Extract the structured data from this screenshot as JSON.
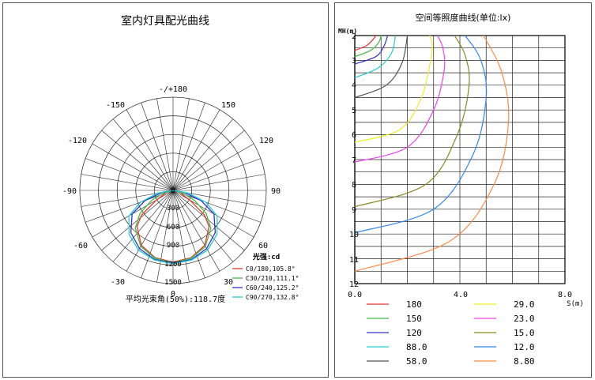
{
  "polar": {
    "title": "室内灯具配光曲线",
    "angle_labels": [
      "-/+180",
      "-150",
      "150",
      "-120",
      "120",
      "-90",
      "90",
      "-60",
      "60",
      "-30",
      "30",
      "0"
    ],
    "radial_labels": [
      "0",
      "300",
      "600",
      "900",
      "1200",
      "1500"
    ],
    "legend_title": "光强:cd",
    "beam_angle_label": "平均光束角(50%):118.7度"
  },
  "iso": {
    "title": "空间等照度曲线(单位:lx)",
    "y_axis_label": "MH(m)",
    "x_axis_label": "S(m)",
    "y_ticks": [
      "2",
      "3",
      "4",
      "5",
      "6",
      "7",
      "8",
      "9",
      "10",
      "11",
      "12"
    ],
    "x_ticks": [
      "0.0",
      "4.0",
      "8.0"
    ]
  },
  "chart_data": [
    {
      "type": "polar",
      "title": "室内灯具配光曲线",
      "unit": "cd",
      "rlim": [
        0,
        1500
      ],
      "radial_ticks": [
        0,
        300,
        600,
        900,
        1200,
        1500
      ],
      "grid": true,
      "legend_position": "bottom-right",
      "series": [
        {
          "name": "C0/180,105.8°",
          "color": "#e8352f",
          "angles": [
            0,
            15,
            30,
            45,
            52,
            60,
            75,
            90
          ],
          "values": [
            1155,
            1120,
            1020,
            820,
            640,
            310,
            100,
            0
          ]
        },
        {
          "name": "C30/210,111.1°",
          "color": "#44bb44",
          "angles": [
            0,
            15,
            30,
            45,
            55,
            65,
            75,
            90
          ],
          "values": [
            1165,
            1130,
            1040,
            860,
            650,
            380,
            150,
            0
          ]
        },
        {
          "name": "C60/240,125.2°",
          "color": "#3333cc",
          "angles": [
            0,
            15,
            30,
            45,
            60,
            70,
            80,
            90
          ],
          "values": [
            1170,
            1150,
            1080,
            960,
            760,
            480,
            170,
            0
          ]
        },
        {
          "name": "C90/270,132.8°",
          "color": "#22cccc",
          "angles": [
            0,
            15,
            30,
            45,
            60,
            70,
            80,
            90
          ],
          "values": [
            1180,
            1160,
            1110,
            1000,
            820,
            560,
            250,
            0
          ]
        }
      ],
      "beam_angle_avg_deg": 118.7
    },
    {
      "type": "line",
      "title": "空间等照度曲线(单位:lx)",
      "xlabel": "S(m)",
      "ylabel": "MH(m)",
      "xlim": [
        0,
        8
      ],
      "ylim": [
        2,
        12
      ],
      "y_inverted": true,
      "grid": true,
      "legend_position": "bottom",
      "series": [
        {
          "name": "180",
          "color": "#e8352f",
          "x": [
            0.0,
            0.45,
            0.7,
            0.8
          ],
          "y": [
            2.6,
            2.4,
            2.15,
            2.0
          ]
        },
        {
          "name": "150",
          "color": "#44bb44",
          "x": [
            0.0,
            0.6,
            0.9,
            1.0
          ],
          "y": [
            2.85,
            2.6,
            2.3,
            2.0
          ]
        },
        {
          "name": "120",
          "color": "#3333cc",
          "x": [
            0.0,
            0.8,
            1.1,
            1.25
          ],
          "y": [
            3.15,
            2.85,
            2.45,
            2.0
          ]
        },
        {
          "name": "88.0",
          "color": "#22cccc",
          "x": [
            0.0,
            0.9,
            1.4,
            1.55
          ],
          "y": [
            3.7,
            3.3,
            2.7,
            2.0
          ]
        },
        {
          "name": "58.0",
          "color": "#555555",
          "x": [
            0.0,
            1.2,
            1.8,
            2.0
          ],
          "y": [
            4.5,
            4.0,
            3.1,
            2.0
          ]
        },
        {
          "name": "29.0",
          "color": "#eeee22",
          "x": [
            0.0,
            1.7,
            2.5,
            2.85,
            2.95,
            2.85
          ],
          "y": [
            6.3,
            5.8,
            4.6,
            3.2,
            2.4,
            2.0
          ]
        },
        {
          "name": "23.0",
          "color": "#ee44ee",
          "x": [
            0.0,
            2.0,
            3.0,
            3.4,
            3.35,
            3.15
          ],
          "y": [
            7.1,
            6.5,
            5.0,
            3.4,
            2.5,
            2.0
          ]
        },
        {
          "name": "15.0",
          "color": "#888822",
          "x": [
            0.0,
            2.7,
            3.9,
            4.35,
            4.2,
            3.8
          ],
          "y": [
            8.9,
            8.0,
            6.0,
            4.0,
            2.8,
            2.0
          ]
        },
        {
          "name": "12.0",
          "color": "#3388ee",
          "x": [
            0.0,
            3.0,
            4.5,
            5.0,
            4.8,
            4.2
          ],
          "y": [
            9.95,
            9.0,
            6.8,
            4.5,
            3.0,
            2.0
          ]
        },
        {
          "name": "8.80",
          "color": "#ff8844",
          "x": [
            0.0,
            3.6,
            5.3,
            5.85,
            5.6,
            4.9
          ],
          "y": [
            11.5,
            10.3,
            8.0,
            5.5,
            3.5,
            2.0
          ]
        }
      ]
    }
  ]
}
